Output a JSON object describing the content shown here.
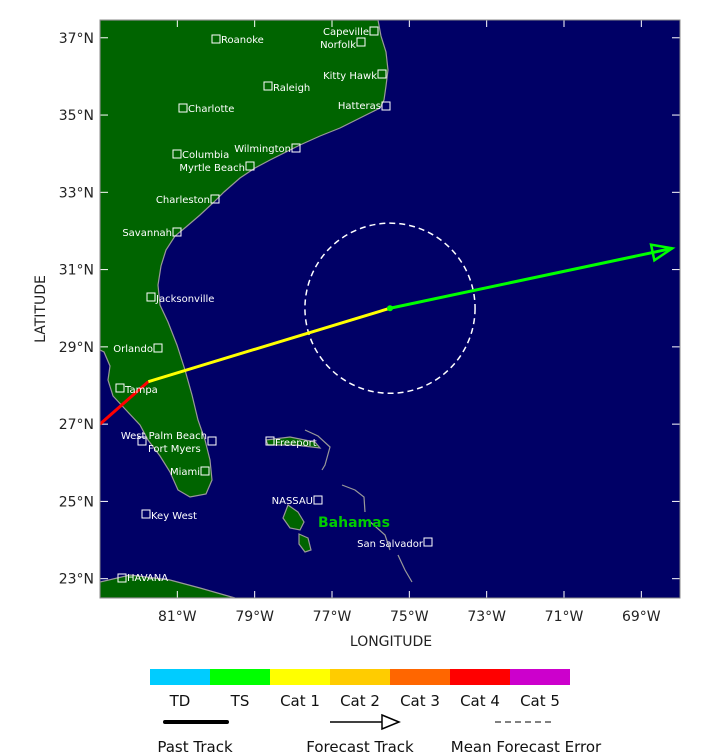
{
  "map": {
    "lon_range": [
      -83,
      -68
    ],
    "lat_range": [
      22.5,
      37.46
    ],
    "colors": {
      "land": "#006400",
      "ocean": "#000066",
      "coast": "#999999",
      "label": "#ffffff",
      "region_label": "#00cc00"
    },
    "xlabel": "LONGITUDE",
    "ylabel": "LATITUDE",
    "lon_ticks": [
      "81°W",
      "79°W",
      "77°W",
      "75°W",
      "73°W",
      "71°W",
      "69°W"
    ],
    "lat_ticks": [
      "37°N",
      "35°N",
      "33°N",
      "31°N",
      "29°N",
      "27°N",
      "25°N",
      "23°N"
    ],
    "region_label": "Bahamas",
    "cities": [
      "Roanoke",
      "Capeville",
      "Norfolk",
      "Kitty Hawk",
      "Raleigh",
      "Hatteras",
      "Charlotte",
      "Wilmington",
      "Columbia",
      "Myrtle Beach",
      "Charleston",
      "Savannah",
      "Jacksonville",
      "Orlando",
      "Tampa",
      "West Palm Beach",
      "Fort Myers",
      "Miami",
      "Key West",
      "Freeport",
      "NASSAU",
      "San Salvador",
      "HAVANA"
    ]
  },
  "track": {
    "past": [
      {
        "lon": -83.0,
        "lat": 27.0,
        "category": "Cat 4"
      },
      {
        "lon": -81.75,
        "lat": 28.1,
        "category": "Cat 1"
      }
    ],
    "forecast": [
      {
        "lon": -81.75,
        "lat": 28.1,
        "category": "Cat 1"
      },
      {
        "lon": -75.5,
        "lat": 30.0,
        "category": "TS"
      },
      {
        "lon": -68.2,
        "lat": 31.55,
        "category": "TS"
      }
    ],
    "error_circle": {
      "lon": -75.5,
      "lat": 30.0,
      "radius_deg": 2.2
    }
  },
  "legend": {
    "categories": [
      {
        "label": "TD",
        "color": "#00ccff"
      },
      {
        "label": "TS",
        "color": "#00ff00"
      },
      {
        "label": "Cat 1",
        "color": "#ffff00"
      },
      {
        "label": "Cat 2",
        "color": "#ffcc00"
      },
      {
        "label": "Cat 3",
        "color": "#ff6600"
      },
      {
        "label": "Cat 4",
        "color": "#ff0000"
      },
      {
        "label": "Cat 5",
        "color": "#cc00cc"
      }
    ],
    "past_track": "Past Track",
    "forecast_track": "Forecast Track",
    "mean_error": "Mean Forecast Error"
  }
}
